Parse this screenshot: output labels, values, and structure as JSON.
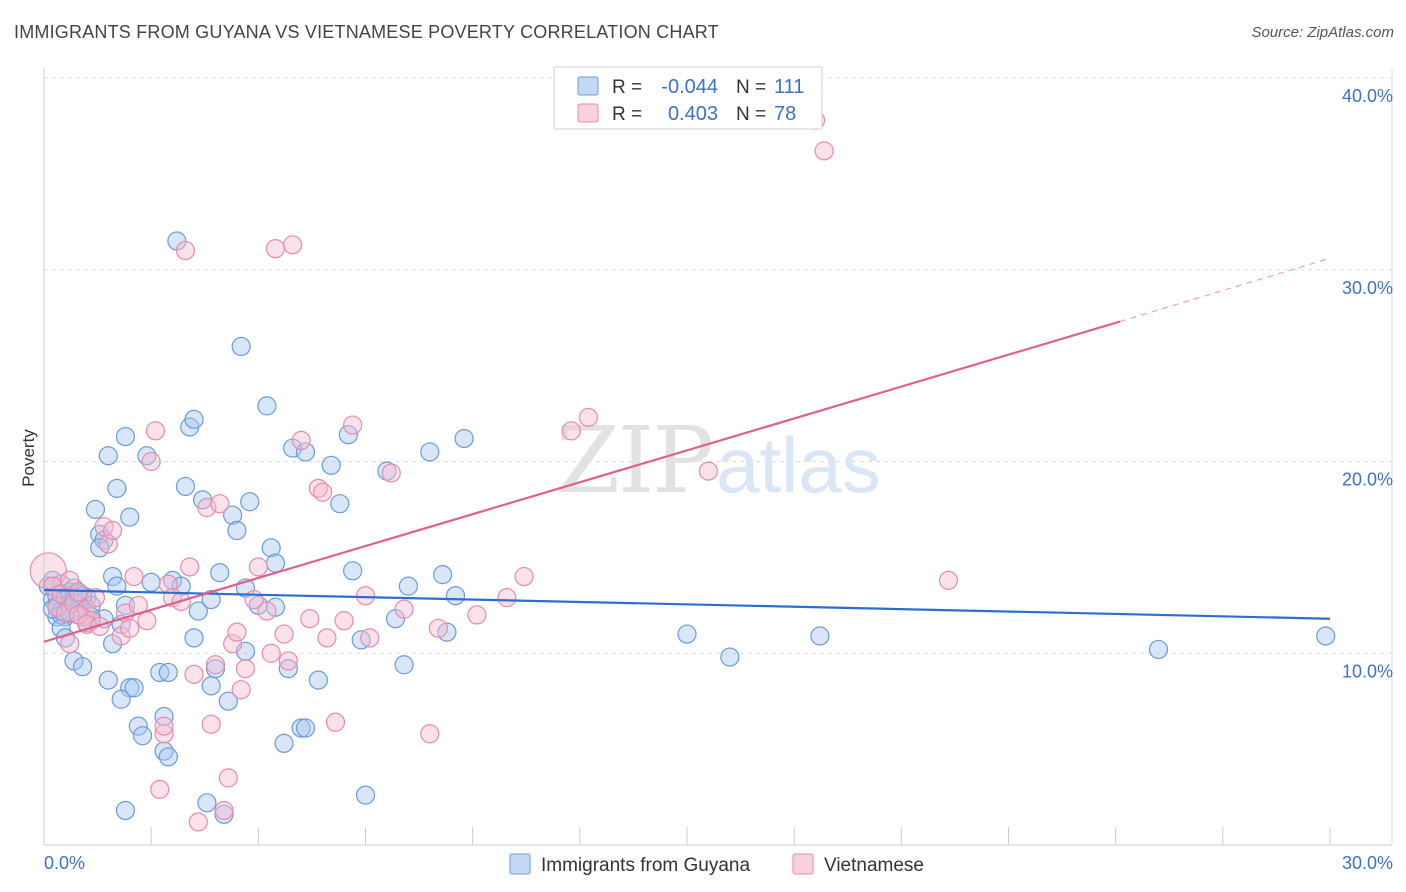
{
  "title": "IMMIGRANTS FROM GUYANA VS VIETNAMESE POVERTY CORRELATION CHART",
  "source": "Source: ZipAtlas.com",
  "watermark": {
    "zip": "ZIP",
    "atlas": "atlas"
  },
  "colors": {
    "blue_fill": "#a9c8ef",
    "blue_stroke": "#6a9bd8",
    "blue_line": "#2a6fd0",
    "pink_fill": "#f5bcd0",
    "pink_stroke": "#e88aab",
    "pink_line": "#e0608a",
    "axis_text": "#3a72c8",
    "grid": "#dddddd"
  },
  "legend": {
    "rows": [
      {
        "r_label": "R =",
        "r_value": "-0.044",
        "n_label": "N =",
        "n_value": "111"
      },
      {
        "r_label": "R =",
        "r_value": "0.403",
        "n_label": "N =",
        "n_value": "78"
      }
    ]
  },
  "bottom_legend": [
    "Immigrants from Guyana",
    "Vietnamese"
  ],
  "chart_data": {
    "type": "scatter",
    "title": "IMMIGRANTS FROM GUYANA VS VIETNAMESE POVERTY CORRELATION CHART",
    "xlabel": "",
    "ylabel": "Poverty",
    "xlim": [
      0,
      30
    ],
    "ylim": [
      0,
      40
    ],
    "x_tick_labels": [
      "0.0%",
      "30.0%"
    ],
    "y_ticks": [
      10,
      20,
      30,
      40
    ],
    "y_tick_labels": [
      "10.0%",
      "20.0%",
      "30.0%",
      "40.0%"
    ],
    "grid": true,
    "legend_position": "top-center",
    "series": [
      {
        "name": "Immigrants from Guyana",
        "R": -0.044,
        "N": 111,
        "trend": {
          "x0": 0,
          "y0": 13.3,
          "x1": 30,
          "y1": 11.8
        },
        "points": [
          [
            0.1,
            13.5
          ],
          [
            0.2,
            12.8
          ],
          [
            0.2,
            13.8
          ],
          [
            0.3,
            12.5
          ],
          [
            0.3,
            13.0
          ],
          [
            0.4,
            12.2
          ],
          [
            0.4,
            13.6
          ],
          [
            0.5,
            12.9
          ],
          [
            0.5,
            11.9
          ],
          [
            0.6,
            13.2
          ],
          [
            0.6,
            12.6
          ],
          [
            0.7,
            13.4
          ],
          [
            0.8,
            12.4
          ],
          [
            0.8,
            13.1
          ],
          [
            0.9,
            12.7
          ],
          [
            1.0,
            11.6
          ],
          [
            1.0,
            12.9
          ],
          [
            1.1,
            12.5
          ],
          [
            0.3,
            11.9
          ],
          [
            0.4,
            12.0
          ],
          [
            0.2,
            12.3
          ],
          [
            0.6,
            12.1
          ],
          [
            0.7,
            12.8
          ],
          [
            0.9,
            13.0
          ],
          [
            0.4,
            11.3
          ],
          [
            0.5,
            10.8
          ],
          [
            0.7,
            9.6
          ],
          [
            0.9,
            9.3
          ],
          [
            1.2,
            17.5
          ],
          [
            1.3,
            16.2
          ],
          [
            1.4,
            15.9
          ],
          [
            1.3,
            15.5
          ],
          [
            1.5,
            8.6
          ],
          [
            1.6,
            14.0
          ],
          [
            1.7,
            13.5
          ],
          [
            1.8,
            11.5
          ],
          [
            1.9,
            12.5
          ],
          [
            2.0,
            8.2
          ],
          [
            2.1,
            8.2
          ],
          [
            2.2,
            6.2
          ],
          [
            2.3,
            5.7
          ],
          [
            1.5,
            20.3
          ],
          [
            1.6,
            10.5
          ],
          [
            1.7,
            18.6
          ],
          [
            1.9,
            21.3
          ],
          [
            1.8,
            7.6
          ],
          [
            2.0,
            17.1
          ],
          [
            2.4,
            20.3
          ],
          [
            2.5,
            13.7
          ],
          [
            2.7,
            9.0
          ],
          [
            2.8,
            6.7
          ],
          [
            2.8,
            4.9
          ],
          [
            2.9,
            9.0
          ],
          [
            3.0,
            13.8
          ],
          [
            3.2,
            13.5
          ],
          [
            3.3,
            18.7
          ],
          [
            3.4,
            21.8
          ],
          [
            3.5,
            22.2
          ],
          [
            3.5,
            10.8
          ],
          [
            3.6,
            12.2
          ],
          [
            3.7,
            18.0
          ],
          [
            3.8,
            2.2
          ],
          [
            3.9,
            8.3
          ],
          [
            3.9,
            12.8
          ],
          [
            4.0,
            9.2
          ],
          [
            4.1,
            14.2
          ],
          [
            4.2,
            1.6
          ],
          [
            4.3,
            7.5
          ],
          [
            4.4,
            17.2
          ],
          [
            4.5,
            16.4
          ],
          [
            4.6,
            26.0
          ],
          [
            4.7,
            13.4
          ],
          [
            4.7,
            10.1
          ],
          [
            4.8,
            17.9
          ],
          [
            5.0,
            12.5
          ],
          [
            5.2,
            22.9
          ],
          [
            5.3,
            15.5
          ],
          [
            5.4,
            12.4
          ],
          [
            5.4,
            14.7
          ],
          [
            5.6,
            5.3
          ],
          [
            5.7,
            9.2
          ],
          [
            5.8,
            20.7
          ],
          [
            6.0,
            6.1
          ],
          [
            6.1,
            20.5
          ],
          [
            6.1,
            6.1
          ],
          [
            6.4,
            8.6
          ],
          [
            6.7,
            19.8
          ],
          [
            6.9,
            17.8
          ],
          [
            7.1,
            21.4
          ],
          [
            7.2,
            14.3
          ],
          [
            7.4,
            10.7
          ],
          [
            7.5,
            2.6
          ],
          [
            8.0,
            19.5
          ],
          [
            8.2,
            11.8
          ],
          [
            8.4,
            9.4
          ],
          [
            8.5,
            13.5
          ],
          [
            9.0,
            20.5
          ],
          [
            9.3,
            14.1
          ],
          [
            9.4,
            11.1
          ],
          [
            9.6,
            13.0
          ],
          [
            9.8,
            21.2
          ],
          [
            1.9,
            1.8
          ],
          [
            1.4,
            11.8
          ],
          [
            3.1,
            31.5
          ],
          [
            2.9,
            4.6
          ],
          [
            1.1,
            11.9
          ],
          [
            15.0,
            11.0
          ],
          [
            16.0,
            9.8
          ],
          [
            18.1,
            10.9
          ],
          [
            26.0,
            10.2
          ],
          [
            29.9,
            10.9
          ]
        ]
      },
      {
        "name": "Vietnamese",
        "R": 0.403,
        "N": 78,
        "trend": {
          "x0": 0,
          "y0": 10.6,
          "x1": 25.1,
          "y1": 27.3,
          "dashed_x1": 30,
          "dashed_y1": 30.6
        },
        "points": [
          [
            0.1,
            14.3
          ],
          [
            0.2,
            13.5
          ],
          [
            0.3,
            12.4
          ],
          [
            0.4,
            13.1
          ],
          [
            0.5,
            12.1
          ],
          [
            0.6,
            13.8
          ],
          [
            0.7,
            12.6
          ],
          [
            0.8,
            13.2
          ],
          [
            0.9,
            11.9
          ],
          [
            1.0,
            12.3
          ],
          [
            1.1,
            11.7
          ],
          [
            0.6,
            10.5
          ],
          [
            0.8,
            12.0
          ],
          [
            1.0,
            11.5
          ],
          [
            1.2,
            12.9
          ],
          [
            1.3,
            11.4
          ],
          [
            1.4,
            16.6
          ],
          [
            1.5,
            15.7
          ],
          [
            1.6,
            16.4
          ],
          [
            1.8,
            10.9
          ],
          [
            1.9,
            12.1
          ],
          [
            2.0,
            11.3
          ],
          [
            2.1,
            14.0
          ],
          [
            2.2,
            12.5
          ],
          [
            2.4,
            11.7
          ],
          [
            2.5,
            20.0
          ],
          [
            2.6,
            21.6
          ],
          [
            2.7,
            2.9
          ],
          [
            2.8,
            5.8
          ],
          [
            2.8,
            6.2
          ],
          [
            2.9,
            13.6
          ],
          [
            3.0,
            12.9
          ],
          [
            3.2,
            12.7
          ],
          [
            3.3,
            31.0
          ],
          [
            3.4,
            14.5
          ],
          [
            3.5,
            8.9
          ],
          [
            3.6,
            1.2
          ],
          [
            3.8,
            17.6
          ],
          [
            3.9,
            6.3
          ],
          [
            4.0,
            9.4
          ],
          [
            4.1,
            17.8
          ],
          [
            4.2,
            1.8
          ],
          [
            4.3,
            3.5
          ],
          [
            4.4,
            10.5
          ],
          [
            4.5,
            11.1
          ],
          [
            4.7,
            9.2
          ],
          [
            4.9,
            12.8
          ],
          [
            5.0,
            14.5
          ],
          [
            5.2,
            12.2
          ],
          [
            5.4,
            31.1
          ],
          [
            5.6,
            11.0
          ],
          [
            5.7,
            9.6
          ],
          [
            5.8,
            31.3
          ],
          [
            6.0,
            21.1
          ],
          [
            6.2,
            11.8
          ],
          [
            6.4,
            18.6
          ],
          [
            6.5,
            18.4
          ],
          [
            6.6,
            10.8
          ],
          [
            6.8,
            6.4
          ],
          [
            7.0,
            11.7
          ],
          [
            7.2,
            21.9
          ],
          [
            7.5,
            13.0
          ],
          [
            7.6,
            10.8
          ],
          [
            8.1,
            19.4
          ],
          [
            8.4,
            12.3
          ],
          [
            9.0,
            5.8
          ],
          [
            9.2,
            11.3
          ],
          [
            10.1,
            12.0
          ],
          [
            10.8,
            12.9
          ],
          [
            11.2,
            14.0
          ],
          [
            12.3,
            21.6
          ],
          [
            12.7,
            22.3
          ],
          [
            15.5,
            19.5
          ],
          [
            18.0,
            37.8
          ],
          [
            18.2,
            36.2
          ],
          [
            21.1,
            13.8
          ],
          [
            5.3,
            10.0
          ],
          [
            4.6,
            8.1
          ]
        ]
      }
    ]
  }
}
